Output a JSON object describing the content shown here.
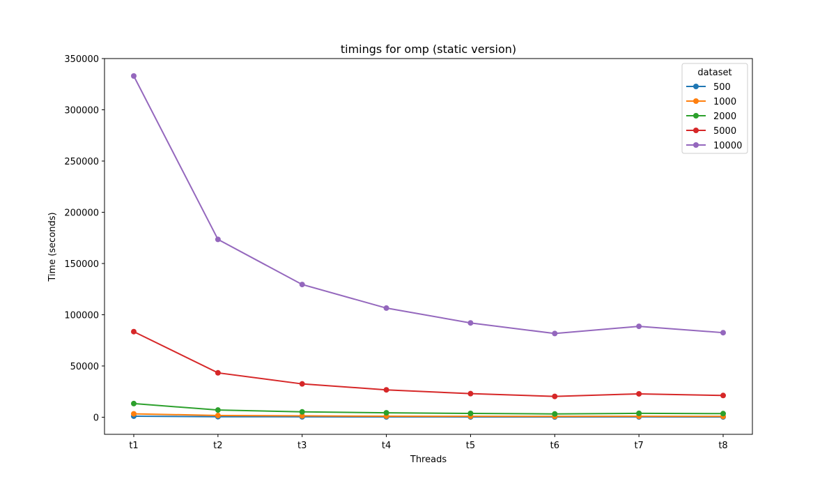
{
  "chart_data": {
    "type": "line",
    "title": "timings for omp (static version)",
    "xlabel": "Threads",
    "ylabel": "Time (seconds)",
    "categories": [
      "t1",
      "t2",
      "t3",
      "t4",
      "t5",
      "t6",
      "t7",
      "t8"
    ],
    "ylim": [
      -16700,
      350000
    ],
    "yticks": [
      0,
      50000,
      100000,
      150000,
      200000,
      250000,
      300000,
      350000
    ],
    "grid": false,
    "legend": {
      "title": "dataset",
      "placement": "top-right"
    },
    "series": [
      {
        "name": "500",
        "color": "#1f77b4",
        "values": [
          1000,
          500,
          400,
          300,
          250,
          200,
          300,
          250
        ]
      },
      {
        "name": "1000",
        "color": "#ff7f0e",
        "values": [
          3300,
          1700,
          1300,
          1000,
          900,
          800,
          900,
          800
        ]
      },
      {
        "name": "2000",
        "color": "#2ca02c",
        "values": [
          13300,
          7000,
          5200,
          4300,
          3700,
          3200,
          3800,
          3500
        ]
      },
      {
        "name": "5000",
        "color": "#d62728",
        "values": [
          83500,
          43300,
          32500,
          26700,
          23000,
          20300,
          22800,
          21200
        ]
      },
      {
        "name": "10000",
        "color": "#9467bd",
        "values": [
          333000,
          173500,
          129500,
          106500,
          92000,
          81700,
          88700,
          82500
        ]
      }
    ]
  }
}
